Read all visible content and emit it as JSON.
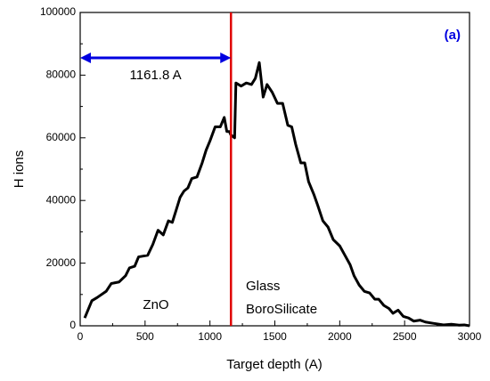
{
  "chart_data": {
    "type": "line",
    "xlabel": "Target depth (A)",
    "ylabel": "H ions",
    "panel_label": "(a)",
    "series": [
      {
        "name": "H ions",
        "color": "#000000",
        "x": [
          35,
          90,
          130,
          200,
          240,
          300,
          350,
          380,
          420,
          450,
          520,
          560,
          600,
          640,
          680,
          710,
          740,
          770,
          800,
          830,
          860,
          900,
          940,
          970,
          1000,
          1040,
          1080,
          1110,
          1130,
          1150,
          1160,
          1190,
          1200,
          1240,
          1280,
          1320,
          1350,
          1380,
          1410,
          1440,
          1480,
          1520,
          1560,
          1600,
          1630,
          1660,
          1700,
          1730,
          1760,
          1800,
          1830,
          1870,
          1910,
          1950,
          2000,
          2040,
          2080,
          2110,
          2150,
          2190,
          2230,
          2270,
          2300,
          2340,
          2380,
          2410,
          2450,
          2490,
          2530,
          2570,
          2620,
          2660,
          2720,
          2800,
          2860,
          2920,
          2960,
          3000
        ],
        "values": [
          2500,
          8000,
          9000,
          11000,
          13500,
          14000,
          16000,
          18500,
          19000,
          22000,
          22500,
          26000,
          30500,
          29000,
          33500,
          33000,
          37000,
          41000,
          43000,
          44000,
          47000,
          47500,
          52000,
          56000,
          59000,
          63500,
          63500,
          66500,
          62000,
          62000,
          61000,
          60000,
          77500,
          76500,
          77500,
          77000,
          79000,
          84000,
          73000,
          77000,
          74500,
          71000,
          71000,
          64000,
          63500,
          58000,
          52000,
          52000,
          46000,
          42000,
          38500,
          33500,
          31500,
          27500,
          25500,
          22500,
          19500,
          16000,
          13000,
          11000,
          10500,
          8500,
          8500,
          6500,
          5500,
          4000,
          5000,
          3000,
          2500,
          1500,
          1800,
          1200,
          800,
          300,
          500,
          200,
          300,
          0
        ]
      }
    ],
    "interface": {
      "x": 1161.8,
      "color": "#e00000"
    },
    "arrow": {
      "label": "1161.8 A",
      "x0": 0,
      "x1": 1161.8,
      "y": 85500,
      "color": "#0000e0"
    },
    "region_labels": [
      "ZnO",
      "Glass",
      "BoroSilicate"
    ],
    "xlim": [
      0,
      3000
    ],
    "xticks": [
      0,
      500,
      1000,
      1500,
      2000,
      2500,
      3000
    ],
    "ylim": [
      0,
      100000
    ],
    "yticks": [
      0,
      20000,
      40000,
      60000,
      80000,
      100000
    ]
  }
}
